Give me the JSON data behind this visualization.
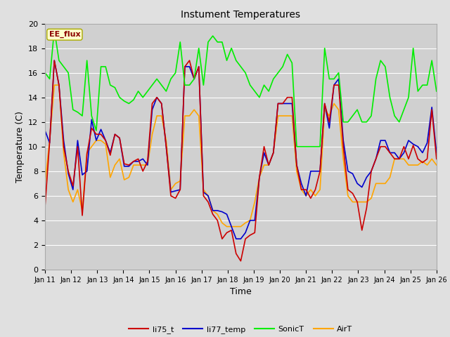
{
  "title": "Instument Temperatures",
  "xlabel": "Time",
  "ylabel": "Temperature (C)",
  "ylim": [
    0,
    20
  ],
  "x_tick_labels": [
    "Jan 11",
    "Jan 12",
    "Jan 13",
    "Jan 14",
    "Jan 15",
    "Jan 16",
    "Jan 17",
    "Jan 18",
    "Jan 19",
    "Jan 20",
    "Jan 21",
    "Jan 22",
    "Jan 23",
    "Jan 24",
    "Jan 25",
    "Jan 26"
  ],
  "annotation_text": "EE_flux",
  "annotation_color": "#8B0000",
  "annotation_bg": "#FFFFCC",
  "bg_color": "#E0E0E0",
  "plot_bg_color": "#D0D0D0",
  "grid_color": "#FFFFFF",
  "series": {
    "li75_t": {
      "color": "#CC0000",
      "linewidth": 1.2
    },
    "li77_temp": {
      "color": "#0000CC",
      "linewidth": 1.2
    },
    "SonicT": {
      "color": "#00EE00",
      "linewidth": 1.2
    },
    "AirT": {
      "color": "#FFA500",
      "linewidth": 1.2
    }
  },
  "li75_t": [
    5.1,
    10.4,
    17.0,
    15.0,
    10.0,
    8.0,
    6.8,
    10.0,
    4.4,
    9.4,
    11.5,
    11.0,
    11.0,
    10.5,
    9.3,
    11.0,
    10.7,
    8.6,
    8.5,
    8.8,
    9.0,
    8.0,
    8.8,
    13.5,
    14.0,
    13.5,
    10.0,
    6.0,
    5.8,
    6.5,
    16.5,
    17.0,
    15.5,
    16.5,
    6.0,
    5.5,
    4.5,
    4.0,
    2.5,
    3.0,
    3.2,
    1.3,
    0.7,
    2.5,
    2.8,
    3.0,
    7.5,
    10.0,
    8.5,
    9.5,
    13.5,
    13.5,
    14.0,
    14.0,
    8.5,
    6.5,
    6.5,
    5.8,
    6.5,
    8.0,
    13.5,
    12.0,
    15.0,
    15.0,
    10.0,
    6.5,
    6.2,
    5.5,
    3.2,
    5.0,
    8.0,
    9.0,
    10.0,
    10.0,
    9.5,
    9.0,
    9.0,
    10.0,
    9.0,
    10.1,
    9.0,
    8.7,
    9.0,
    13.0,
    9.0
  ],
  "li77_temp": [
    11.3,
    10.3,
    17.0,
    15.0,
    10.5,
    7.8,
    6.5,
    10.5,
    7.7,
    8.0,
    12.2,
    10.5,
    11.4,
    10.5,
    9.5,
    11.0,
    10.7,
    8.4,
    8.4,
    8.8,
    8.8,
    9.0,
    8.5,
    13.0,
    14.0,
    13.5,
    10.0,
    6.3,
    6.4,
    6.5,
    16.5,
    16.5,
    15.5,
    16.5,
    6.3,
    6.0,
    4.8,
    4.8,
    4.7,
    4.5,
    3.5,
    2.5,
    2.5,
    3.0,
    4.0,
    4.0,
    7.5,
    9.5,
    8.5,
    9.5,
    13.5,
    13.5,
    13.5,
    13.5,
    8.5,
    7.0,
    6.0,
    8.0,
    8.0,
    8.0,
    13.5,
    11.5,
    15.0,
    15.5,
    10.5,
    8.0,
    7.8,
    7.0,
    6.7,
    7.5,
    8.0,
    9.0,
    10.5,
    10.5,
    9.5,
    9.5,
    9.0,
    9.5,
    10.5,
    10.2,
    10.0,
    9.5,
    10.3,
    13.2,
    9.5
  ],
  "SonicT": [
    16.0,
    15.5,
    19.5,
    17.0,
    16.5,
    16.0,
    13.0,
    12.8,
    12.5,
    17.0,
    12.5,
    11.3,
    16.5,
    16.5,
    15.0,
    14.8,
    14.0,
    13.7,
    13.5,
    13.8,
    14.5,
    14.0,
    14.5,
    15.0,
    15.5,
    15.0,
    14.5,
    15.5,
    16.0,
    18.5,
    15.0,
    15.0,
    15.5,
    18.0,
    15.0,
    18.5,
    19.0,
    18.5,
    18.5,
    17.0,
    18.0,
    17.0,
    16.5,
    16.0,
    15.0,
    14.5,
    14.0,
    15.0,
    14.5,
    15.5,
    16.0,
    16.5,
    17.5,
    16.8,
    10.0,
    10.0,
    10.0,
    10.0,
    10.0,
    10.0,
    18.0,
    15.5,
    15.5,
    16.0,
    12.0,
    12.0,
    12.5,
    13.0,
    12.0,
    12.0,
    12.5,
    15.5,
    17.0,
    16.5,
    14.0,
    12.5,
    12.0,
    13.0,
    14.0,
    18.0,
    14.5,
    15.0,
    15.0,
    17.0,
    14.5
  ],
  "AirT": [
    7.0,
    10.5,
    15.0,
    15.0,
    9.5,
    6.5,
    5.5,
    6.5,
    4.8,
    9.5,
    10.0,
    10.5,
    10.5,
    10.2,
    7.5,
    8.5,
    9.0,
    7.3,
    7.5,
    8.5,
    8.5,
    8.5,
    8.5,
    11.0,
    12.5,
    12.5,
    10.5,
    6.5,
    7.0,
    7.2,
    12.5,
    12.5,
    13.0,
    12.5,
    6.5,
    6.0,
    4.8,
    4.5,
    3.8,
    3.5,
    3.5,
    3.5,
    3.5,
    3.8,
    4.0,
    5.5,
    7.5,
    8.5,
    8.5,
    9.5,
    12.5,
    12.5,
    12.5,
    12.5,
    8.0,
    6.5,
    6.0,
    6.5,
    6.0,
    6.5,
    13.0,
    12.5,
    13.5,
    13.0,
    9.0,
    6.0,
    5.5,
    5.5,
    5.5,
    5.5,
    5.8,
    7.0,
    7.0,
    7.0,
    7.5,
    9.0,
    9.0,
    9.0,
    8.5,
    8.5,
    8.5,
    8.8,
    8.5,
    9.0,
    8.5
  ]
}
